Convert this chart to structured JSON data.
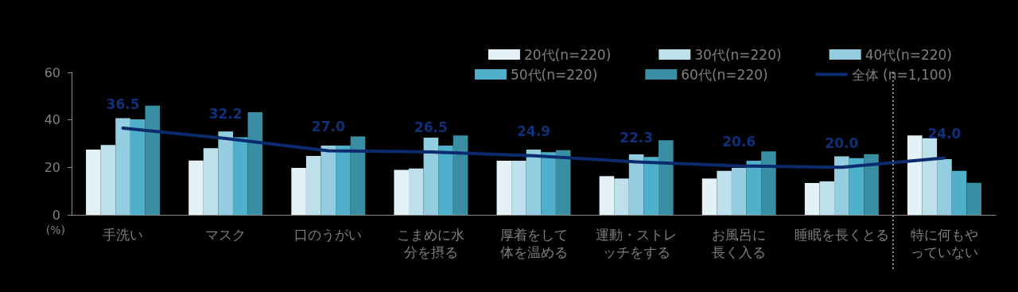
{
  "chart_data": {
    "type": "bar",
    "ylabel": "(%)",
    "categories": [
      "手洗い",
      "マスク",
      "口のうがい",
      "こまめに水分を摂る",
      "厚着をして体を温める",
      "運動・ストレッチをする",
      "お風呂に長く入る",
      "睡眠を長くとる",
      "特に何もやっていない"
    ],
    "series": [
      {
        "name": "20代(n=220)",
        "color": "#e4f1f7",
        "values": [
          27.5,
          22.9,
          19.8,
          18.9,
          22.8,
          16.3,
          15.3,
          13.4,
          33.4
        ]
      },
      {
        "name": "30代(n=220)",
        "color": "#bde0ea",
        "values": [
          29.4,
          28.1,
          24.8,
          19.5,
          22.8,
          15.3,
          18.5,
          14.1,
          32.3
        ]
      },
      {
        "name": "40代(n=220)",
        "color": "#94cde0",
        "values": [
          40.7,
          35.1,
          29.2,
          32.5,
          27.5,
          25.5,
          19.8,
          24.6,
          23.5
        ]
      },
      {
        "name": "50代(n=220)",
        "color": "#4fb0cc",
        "values": [
          40.2,
          32.7,
          29.2,
          29.2,
          26.4,
          24.4,
          22.8,
          23.9,
          18.5
        ]
      },
      {
        "name": "60代(n=220)",
        "color": "#3a8ea3",
        "values": [
          46.0,
          43.2,
          33.0,
          33.4,
          27.2,
          31.4,
          26.7,
          25.6,
          13.5
        ]
      },
      {
        "name": "全体 (n=1,100)",
        "type": "line",
        "color": "#0a2b6e",
        "values": [
          36.5,
          32.2,
          27.0,
          26.5,
          24.9,
          22.3,
          20.6,
          20.0,
          24.0
        ],
        "value_labels": [
          "36.5",
          "32.2",
          "27.0",
          "26.5",
          "24.9",
          "22.3",
          "20.6",
          "20.0",
          "24.0"
        ]
      }
    ],
    "ylim": [
      0,
      60
    ],
    "yticks": [
      0,
      20,
      40,
      60
    ],
    "grid": false,
    "legend": "top right",
    "marker": "none"
  }
}
